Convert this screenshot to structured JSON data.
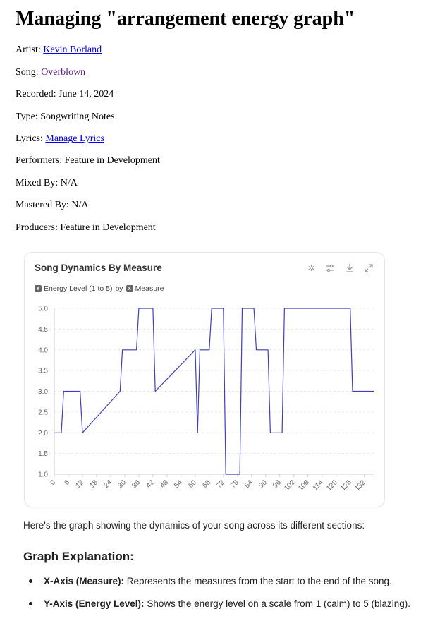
{
  "page": {
    "title": "Managing \"arrangement energy graph\"",
    "details": [
      {
        "label": "Artist: ",
        "value": "Kevin Borland",
        "link": true
      },
      {
        "label": "Song: ",
        "value": "Overblown",
        "link": true
      },
      {
        "label": "Recorded: ",
        "value": "June 14, 2024",
        "link": false
      },
      {
        "label": "Type: ",
        "value": "Songwriting Notes",
        "link": false
      },
      {
        "label": "Lyrics: ",
        "value": "Manage Lyrics",
        "link": true
      },
      {
        "label": "Performers: ",
        "value": "Feature in Development",
        "link": false
      },
      {
        "label": "Mixed By: ",
        "value": "N/A",
        "link": false
      },
      {
        "label": "Mastered By: ",
        "value": "N/A",
        "link": false
      },
      {
        "label": "Producers: ",
        "value": "Feature in Development",
        "link": false
      }
    ]
  },
  "chart_card": {
    "title": "Song Dynamics By Measure",
    "y_field": "Energy Level (1 to 5)",
    "by_word": "by",
    "x_field": "Measure",
    "y_badge": "Y",
    "x_badge": "X",
    "tools": [
      "sparkle-icon",
      "sliders-icon",
      "download-icon",
      "expand-icon"
    ]
  },
  "chart_data": {
    "type": "line",
    "xlabel": "",
    "ylabel": "",
    "xlim": [
      0,
      136
    ],
    "ylim": [
      1.0,
      5.0
    ],
    "x_ticks": [
      0,
      6,
      12,
      18,
      24,
      30,
      36,
      42,
      48,
      54,
      60,
      66,
      72,
      78,
      84,
      90,
      96,
      102,
      108,
      114,
      120,
      126,
      132
    ],
    "y_ticks": [
      "1.0",
      "1.5",
      "2.0",
      "2.5",
      "3.0",
      "3.5",
      "4.0",
      "4.5",
      "5.0"
    ],
    "grid": true,
    "color": "#3f3fbf",
    "series": [
      {
        "x": [
          0,
          3,
          4,
          11,
          12,
          28,
          29,
          35,
          36,
          42,
          43,
          60,
          61,
          62,
          66,
          67,
          72,
          73,
          79,
          80,
          85,
          86,
          91,
          92,
          97,
          98,
          103,
          126,
          127,
          136
        ],
        "y": [
          2,
          2,
          3,
          3,
          2,
          3,
          4,
          4,
          5,
          5,
          3,
          4,
          2,
          4,
          4,
          5,
          5,
          1,
          1,
          5,
          5,
          4,
          4,
          2,
          2,
          5,
          5,
          5,
          3,
          3
        ]
      }
    ]
  },
  "content": {
    "intro": "Here's the graph showing the dynamics of your song across its different sections:",
    "heading": "Graph Explanation:",
    "bullets": [
      {
        "term": "X-Axis (Measure):",
        "text": " Represents the measures from the start to the end of the song."
      },
      {
        "term": "Y-Axis (Energy Level):",
        "text": " Shows the energy level on a scale from 1 (calm) to 5 (blazing)."
      }
    ]
  }
}
